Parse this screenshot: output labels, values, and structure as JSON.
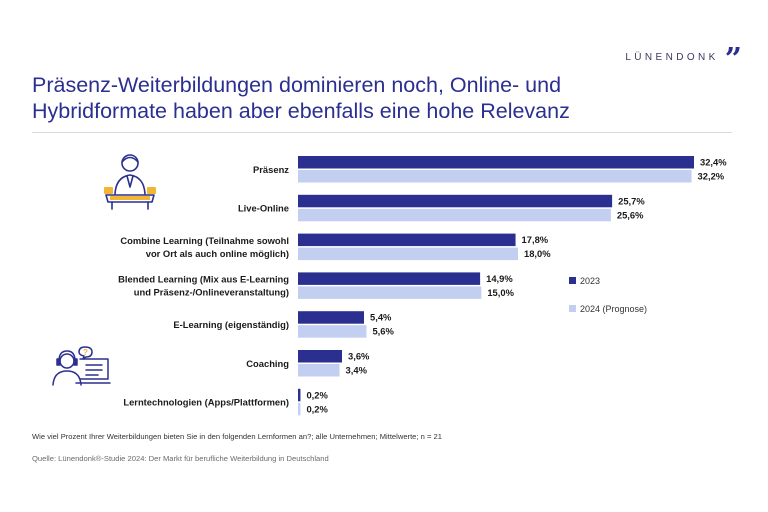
{
  "brand": {
    "name": "LÜNENDONK",
    "quote_glyph": "”"
  },
  "title": "Präsenz-Weiterbildungen dominieren noch, Online- und Hybridformate haben aber ebenfalls eine hohe Relevanz",
  "footnote": "Wie viel Prozent Ihrer Weiterbildungen bieten Sie in den folgenden Lernformen an?; alle Unternehmen; Mittelwerte; n = 21",
  "source": "Quelle: Lünendonk®-Studie 2024: Der Markt für berufliche Weiterbildung in Deutschland",
  "icons": [
    "presenter-icon",
    "online-learner-icon"
  ],
  "colors": {
    "series_2023": "#2b2f8f",
    "series_2024": "#c3cff0",
    "title": "#2b2f8f"
  },
  "chart_data": {
    "type": "bar",
    "orientation": "horizontal",
    "title": "Präsenz-Weiterbildungen dominieren noch, Online- und Hybridformate haben aber ebenfalls eine hohe Relevanz",
    "xlabel": "",
    "ylabel": "",
    "xlim": [
      0,
      32.4
    ],
    "grid": false,
    "legend_position": "right",
    "categories": [
      [
        "Präsenz"
      ],
      [
        "Live-Online"
      ],
      [
        "Combine Learning (Teilnahme sowohl",
        "vor Ort als auch online möglich)"
      ],
      [
        "Blended Learning (Mix aus E-Learning",
        "und Präsenz-/Onlineveranstaltung)"
      ],
      [
        "E-Learning (eigenständig)"
      ],
      [
        "Coaching"
      ],
      [
        "Lerntechnologien (Apps/Plattformen)"
      ]
    ],
    "series": [
      {
        "name": "2023",
        "color": "#2b2f8f",
        "values": [
          32.4,
          25.7,
          17.8,
          14.9,
          5.4,
          3.6,
          0.2
        ],
        "labels": [
          "32,4%",
          "25,7%",
          "17,8%",
          "14,9%",
          "5,4%",
          "3,6%",
          "0,2%"
        ]
      },
      {
        "name": "2024 (Prognose)",
        "color": "#c3cff0",
        "values": [
          32.2,
          25.6,
          18.0,
          15.0,
          5.6,
          3.4,
          0.2
        ],
        "labels": [
          "32,2%",
          "25,6%",
          "18,0%",
          "15,0%",
          "5,6%",
          "3,4%",
          "0,2%"
        ]
      }
    ]
  }
}
